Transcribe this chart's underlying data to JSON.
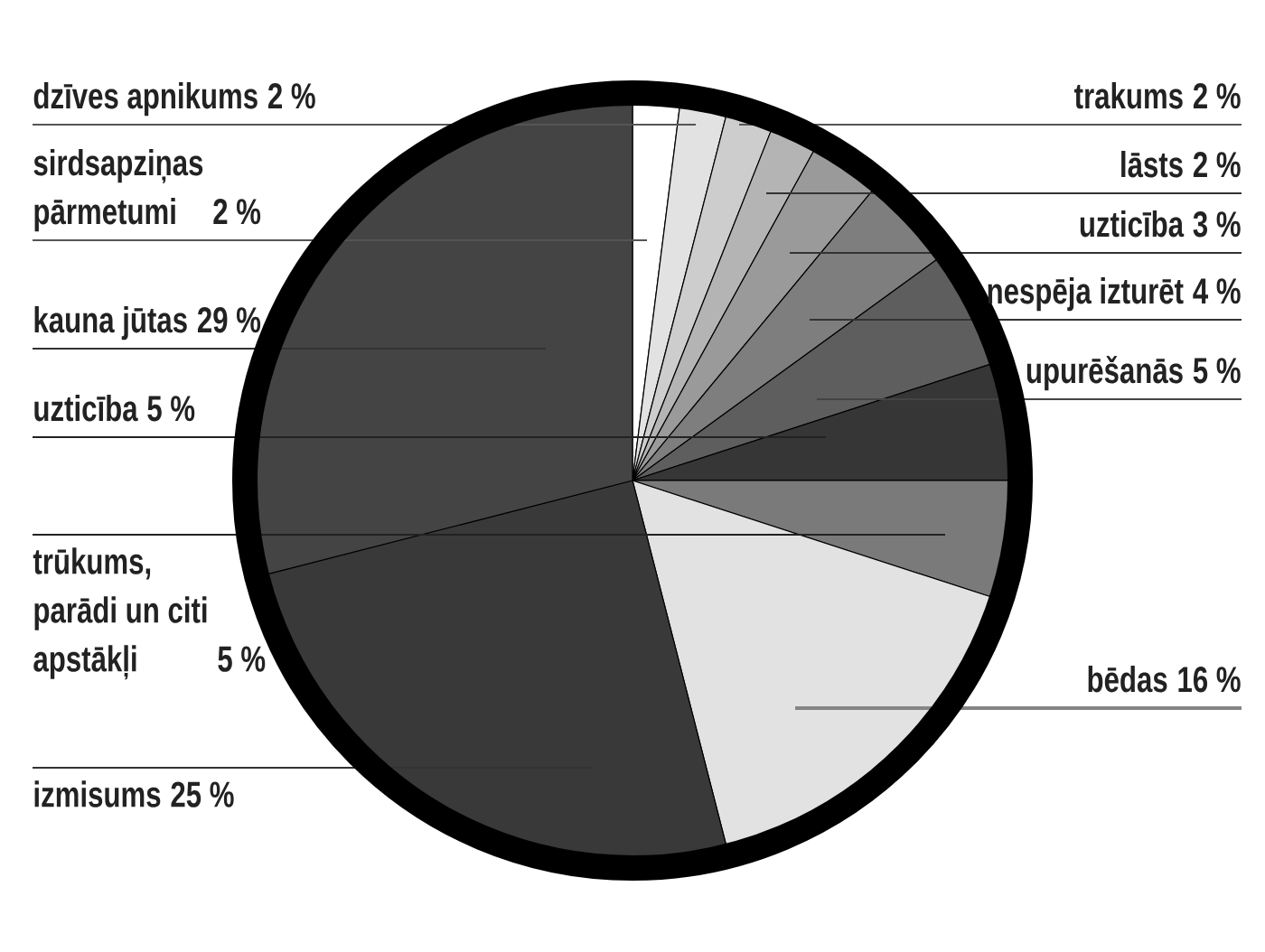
{
  "chart_data": {
    "type": "pie",
    "categories": [
      "sirdsapziņas pārmetumi",
      "dzīves apnikums",
      "trakums",
      "lāsts",
      "uzticība",
      "nespēja izturēt",
      "upurēšanās",
      "uzticība",
      "trūkums, parādi un citi apstākļi",
      "bēdas",
      "izmisums",
      "kauna jūtas"
    ],
    "values": [
      2,
      2,
      2,
      2,
      3,
      4,
      5,
      5,
      5,
      16,
      25,
      29
    ],
    "value_labels": [
      "2 %",
      "2 %",
      "2 %",
      "2 %",
      "3 %",
      "4 %",
      "5 %",
      "5 %",
      "5 %",
      "16 %",
      "25 %",
      "29 %"
    ],
    "colors": [
      "#ffffff",
      "#e2e2e2",
      "#cdcdcd",
      "#b4b4b4",
      "#9a9a9a",
      "#7e7e7e",
      "#5e5e5e",
      "#363636",
      "#7a7a7a",
      "#e2e2e2",
      "#393939",
      "#444444"
    ]
  }
}
